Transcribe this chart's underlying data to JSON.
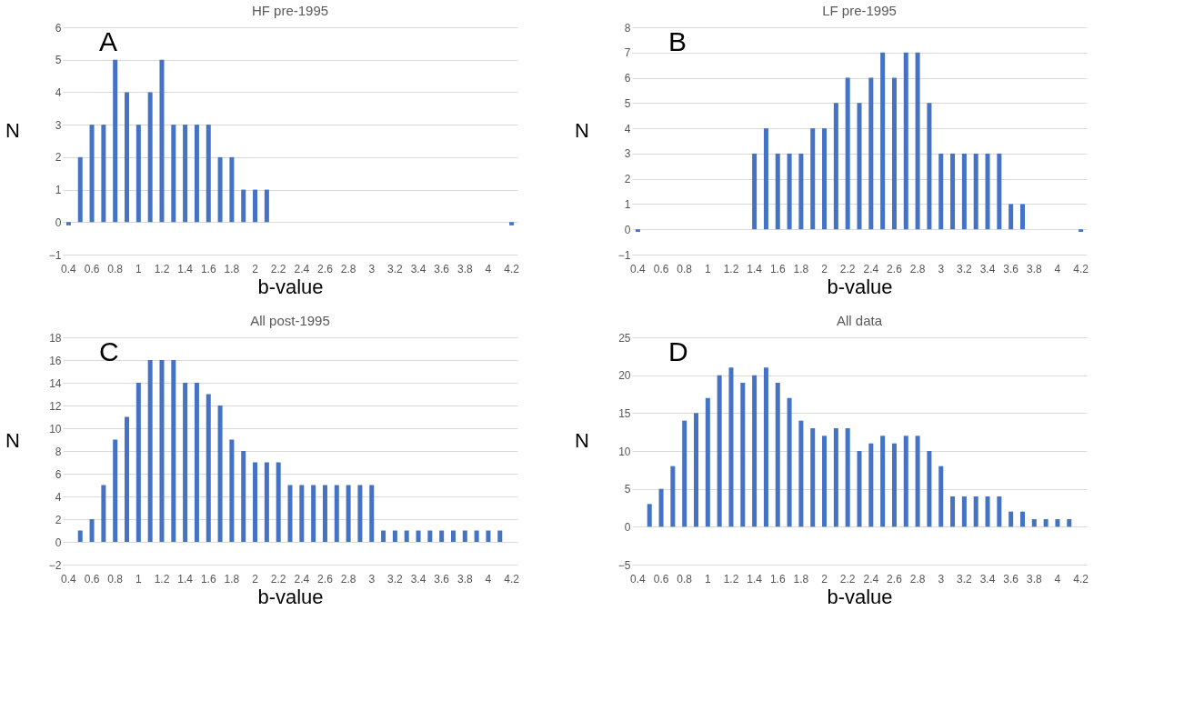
{
  "chart_data": [
    {
      "type": "bar",
      "title": "HF pre-1995",
      "xlabel": "b-value",
      "ylabel": "N",
      "annotations": [
        "A"
      ],
      "categories": [
        "0.4",
        null,
        "0.6",
        null,
        "0.8",
        null,
        "1",
        null,
        "1.2",
        null,
        "1.4",
        null,
        "1.6",
        null,
        "1.8",
        null,
        "2",
        null,
        "2.2",
        null,
        "2.4",
        null,
        "2.6",
        null,
        "2.8",
        null,
        "3",
        null,
        "3.2",
        null,
        "3.4",
        null,
        "3.6",
        null,
        "3.8",
        null,
        "4",
        null,
        "4.2"
      ],
      "values": [
        -0.1,
        2,
        3,
        3,
        5,
        4,
        3,
        4,
        5,
        3,
        3,
        3,
        3,
        2,
        2,
        1,
        1,
        1,
        0,
        0,
        0,
        0,
        0,
        0,
        0,
        0,
        0,
        0,
        0,
        0,
        0,
        0,
        0,
        0,
        0,
        0,
        0,
        0,
        -0.1
      ],
      "color": "#4472c4",
      "ylim": [
        -1,
        6
      ],
      "yticks": [
        -1,
        0,
        1,
        2,
        3,
        4,
        5,
        6
      ],
      "grid": "y"
    },
    {
      "type": "bar",
      "title": "LF pre-1995",
      "xlabel": "b-value",
      "ylabel": "N",
      "annotations": [
        "B"
      ],
      "categories": [
        "0.4",
        null,
        "0.6",
        null,
        "0.8",
        null,
        "1",
        null,
        "1.2",
        null,
        "1.4",
        null,
        "1.6",
        null,
        "1.8",
        null,
        "2",
        null,
        "2.2",
        null,
        "2.4",
        null,
        "2.6",
        null,
        "2.8",
        null,
        "3",
        null,
        "3.2",
        null,
        "3.4",
        null,
        "3.6",
        null,
        "3.8",
        null,
        "4",
        null,
        "4.2"
      ],
      "values": [
        -0.1,
        0,
        0,
        0,
        0,
        0,
        0,
        0,
        0,
        0,
        3,
        4,
        3,
        3,
        3,
        4,
        4,
        5,
        6,
        5,
        6,
        7,
        6,
        7,
        7,
        5,
        3,
        3,
        3,
        3,
        3,
        3,
        1,
        1,
        0,
        0,
        0,
        0,
        -0.1
      ],
      "color": "#4472c4",
      "ylim": [
        -1,
        8
      ],
      "yticks": [
        -1,
        0,
        1,
        2,
        3,
        4,
        5,
        6,
        7,
        8
      ],
      "grid": "y"
    },
    {
      "type": "bar",
      "title": "All post-1995",
      "xlabel": "b-value",
      "ylabel": "N",
      "annotations": [
        "C"
      ],
      "categories": [
        "0.4",
        null,
        "0.6",
        null,
        "0.8",
        null,
        "1",
        null,
        "1.2",
        null,
        "1.4",
        null,
        "1.6",
        null,
        "1.8",
        null,
        "2",
        null,
        "2.2",
        null,
        "2.4",
        null,
        "2.6",
        null,
        "2.8",
        null,
        "3",
        null,
        "3.2",
        null,
        "3.4",
        null,
        "3.6",
        null,
        "3.8",
        null,
        "4",
        null,
        "4.2"
      ],
      "values": [
        0,
        1,
        2,
        5,
        9,
        11,
        14,
        16,
        16,
        16,
        14,
        14,
        13,
        12,
        9,
        8,
        7,
        7,
        7,
        5,
        5,
        5,
        5,
        5,
        5,
        5,
        5,
        1,
        1,
        1,
        1,
        1,
        1,
        1,
        1,
        1,
        1,
        1,
        0
      ],
      "color": "#4472c4",
      "ylim": [
        -2,
        18
      ],
      "yticks": [
        -2,
        0,
        2,
        4,
        6,
        8,
        10,
        12,
        14,
        16,
        18
      ],
      "grid": "y"
    },
    {
      "type": "bar",
      "title": "All data",
      "xlabel": "b-value",
      "ylabel": "N",
      "annotations": [
        "D"
      ],
      "categories": [
        "0.4",
        null,
        "0.6",
        null,
        "0.8",
        null,
        "1",
        null,
        "1.2",
        null,
        "1.4",
        null,
        "1.6",
        null,
        "1.8",
        null,
        "2",
        null,
        "2.2",
        null,
        "2.4",
        null,
        "2.6",
        null,
        "2.8",
        null,
        "3",
        null,
        "3.2",
        null,
        "3.4",
        null,
        "3.6",
        null,
        "3.8",
        null,
        "4",
        null,
        "4.2"
      ],
      "values": [
        0,
        3,
        5,
        8,
        14,
        15,
        17,
        20,
        21,
        19,
        20,
        21,
        19,
        17,
        14,
        13,
        12,
        13,
        13,
        10,
        11,
        12,
        11,
        12,
        12,
        10,
        8,
        4,
        4,
        4,
        4,
        4,
        2,
        2,
        1,
        1,
        1,
        1,
        0
      ],
      "color": "#4472c4",
      "ylim": [
        -5,
        25
      ],
      "yticks": [
        -5,
        0,
        5,
        10,
        15,
        20,
        25
      ],
      "grid": "y"
    }
  ]
}
